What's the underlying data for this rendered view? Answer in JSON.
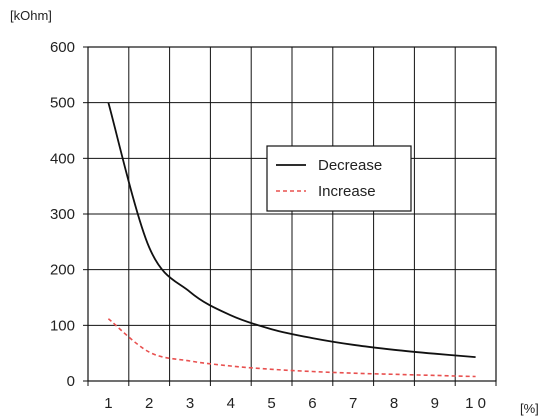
{
  "chart_data": {
    "type": "line",
    "title": "",
    "ylabel": "[kOhm]",
    "xlabel": "[%]",
    "x": [
      1,
      2,
      3,
      4,
      5,
      6,
      7,
      8,
      9,
      10
    ],
    "x_tick_labels": [
      "1",
      "2",
      "3",
      "4",
      "5",
      "6",
      "7",
      "8",
      "9",
      "1 0"
    ],
    "xlim": [
      0.5,
      10.5
    ],
    "ylim": [
      0,
      600
    ],
    "y_ticks": [
      0,
      100,
      200,
      300,
      400,
      500,
      600
    ],
    "grid": true,
    "legend": "center-right",
    "series": [
      {
        "name": "Decrease",
        "color": "#111111",
        "dash": "solid",
        "values": [
          500,
          240,
          160,
          118,
          93,
          77,
          65,
          56,
          49,
          43
        ]
      },
      {
        "name": "Increase",
        "color": "#e8504f",
        "dash": "dashed",
        "values": [
          112,
          52,
          36,
          27,
          21,
          17,
          14,
          12,
          10,
          8
        ]
      }
    ]
  }
}
